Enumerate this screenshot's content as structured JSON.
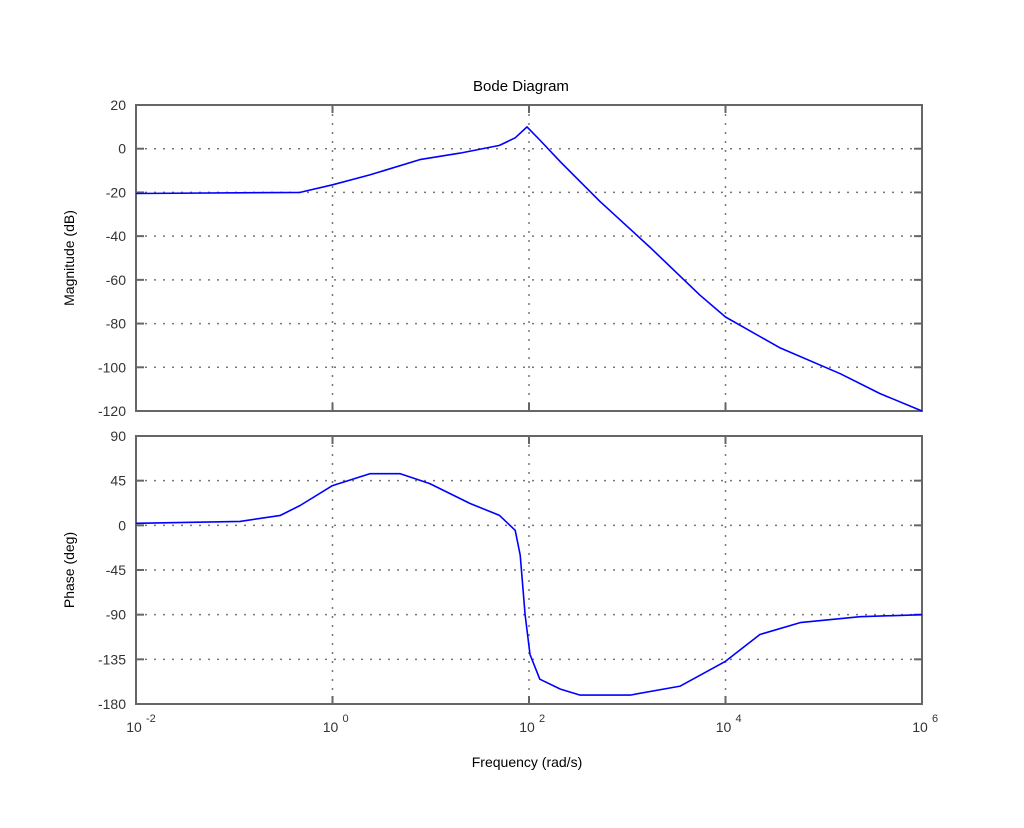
{
  "chart_data": {
    "type": "line",
    "title": "Bode Diagram",
    "xlabel": "Frequency (rad/s)",
    "xscale": "log",
    "xlim": [
      0.01,
      1000000
    ],
    "x_ticks": [
      {
        "base": "10",
        "exp": "-2",
        "log": -2
      },
      {
        "base": "10",
        "exp": "0",
        "log": 0
      },
      {
        "base": "10",
        "exp": "2",
        "log": 2
      },
      {
        "base": "10",
        "exp": "4",
        "log": 4
      },
      {
        "base": "10",
        "exp": "6",
        "log": 6
      }
    ],
    "grid": true,
    "line_color": "#0000ff",
    "subplots": [
      {
        "name": "magnitude",
        "ylabel": "Magnitude (dB)",
        "ylim": [
          -120,
          20
        ],
        "yticks": [
          20,
          0,
          -20,
          -40,
          -60,
          -80,
          -100,
          -120
        ],
        "series": [
          {
            "name": "Magnitude",
            "log10_frequency": [
              -2,
              -0.33,
              0,
              0.38,
              0.89,
              1.3,
              1.7,
              1.86,
              1.98,
              2.11,
              2.32,
              2.72,
              3.23,
              3.74,
              4.0,
              4.55,
              5.17,
              5.57,
              6.0
            ],
            "values": [
              -20.5,
              -20,
              -16.5,
              -12,
              -5,
              -2,
              1.5,
              5,
              10,
              4,
              -6,
              -24,
              -45,
              -67,
              -77,
              -91,
              -103,
              -112,
              -120
            ]
          }
        ]
      },
      {
        "name": "phase",
        "ylabel": "Phase (deg)",
        "ylim": [
          -180,
          90
        ],
        "yticks": [
          90,
          45,
          0,
          -45,
          -90,
          -135,
          -180
        ],
        "series": [
          {
            "name": "Phase",
            "log10_frequency": [
              -2,
              -0.94,
              -0.53,
              -0.33,
              0,
              0.38,
              0.69,
              0.99,
              1.4,
              1.7,
              1.86,
              1.91,
              1.96,
              2.01,
              2.11,
              2.32,
              2.52,
              3.03,
              3.54,
              4.0,
              4.35,
              4.76,
              5.37,
              6.0
            ],
            "values": [
              2,
              4,
              10,
              20,
              40,
              52,
              52,
              42,
              22,
              10,
              -5,
              -30,
              -90,
              -130,
              -155,
              -165,
              -171,
              -171,
              -162,
              -137,
              -110,
              -98,
              -92,
              -90
            ]
          }
        ]
      }
    ]
  }
}
